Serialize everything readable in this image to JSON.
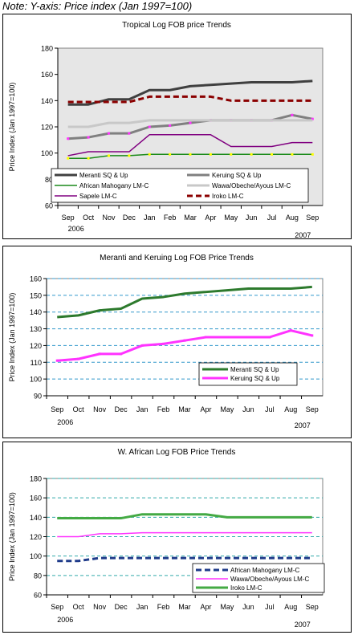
{
  "note": "Note: Y-axis: Price index (Jan 1997=100)",
  "chart_data": [
    {
      "type": "line",
      "title": "Tropical Log FOB price Trends",
      "ylabel": "Price Index (Jan 1997=100)",
      "xlabel": "",
      "categories": [
        "Sep",
        "Oct",
        "Nov",
        "Dec",
        "Jan",
        "Feb",
        "Mar",
        "Apr",
        "May",
        "Jun",
        "Jul",
        "Aug",
        "Sep"
      ],
      "year_labels": [
        "2006",
        "2007"
      ],
      "ylim": [
        60,
        180
      ],
      "yticks": [
        60,
        80,
        100,
        120,
        140,
        160,
        180
      ],
      "grid": false,
      "legend_position": "bottom",
      "series": [
        {
          "name": "Meranti SQ & Up",
          "color": "#404040",
          "style": "solid-thick",
          "values": [
            137,
            137,
            141,
            141,
            148,
            148,
            151,
            152,
            153,
            154,
            154,
            154,
            155
          ]
        },
        {
          "name": "Keruing SQ & Up",
          "color": "#808080",
          "style": "solid-thick-markers",
          "values": [
            111,
            112,
            115,
            115,
            120,
            121,
            123,
            125,
            125,
            125,
            125,
            129,
            126
          ]
        },
        {
          "name": "African Mahogany LM-C",
          "color": "#1a8a1a",
          "style": "solid-markers",
          "values": [
            96,
            96,
            98,
            98,
            99,
            99,
            99,
            99,
            99,
            99,
            99,
            99,
            99
          ]
        },
        {
          "name": "Wawa/Obeche/Ayous LM-C",
          "color": "#c8c8c8",
          "style": "solid-thick",
          "values": [
            120,
            120,
            123,
            123,
            125,
            125,
            125,
            125,
            125,
            125,
            125,
            125,
            125
          ]
        },
        {
          "name": "Sapele LM-C",
          "color": "#800080",
          "style": "solid",
          "values": [
            98,
            101,
            101,
            101,
            114,
            114,
            114,
            114,
            105,
            105,
            105,
            108,
            108
          ]
        },
        {
          "name": "Iroko LM-C",
          "color": "#8b0000",
          "style": "dashed-thick",
          "values": [
            139,
            139,
            139,
            139,
            143,
            143,
            143,
            143,
            140,
            140,
            140,
            140,
            140
          ]
        }
      ]
    },
    {
      "type": "line",
      "title": "Meranti and Keruing Log FOB Price Trends",
      "ylabel": "Price Index (Jan 1997=100)",
      "xlabel": "",
      "categories": [
        "Sep",
        "Oct",
        "Nov",
        "Dec",
        "Jan",
        "Feb",
        "Mar",
        "Apr",
        "May",
        "Jun",
        "Jul",
        "Aug",
        "Sep"
      ],
      "year_labels": [
        "2006",
        "2007"
      ],
      "ylim": [
        90,
        160
      ],
      "yticks": [
        90,
        100,
        110,
        120,
        130,
        140,
        150,
        160
      ],
      "grid": true,
      "legend_position": "bottom-right",
      "series": [
        {
          "name": "Meranti SQ & Up",
          "color": "#2d7a2d",
          "style": "solid-thick",
          "values": [
            137,
            138,
            141,
            142,
            148,
            149,
            151,
            152,
            153,
            154,
            154,
            154,
            155
          ]
        },
        {
          "name": "Keruing SQ & Up",
          "color": "#ff33ff",
          "style": "solid-thick-markers",
          "values": [
            111,
            112,
            115,
            115,
            120,
            121,
            123,
            125,
            125,
            125,
            125,
            129,
            126
          ]
        }
      ]
    },
    {
      "type": "line",
      "title": "W. African Log FOB Price Trends",
      "ylabel": "Price Index (Jan 1997=100)",
      "xlabel": "",
      "categories": [
        "Sep",
        "Oct",
        "Nov",
        "Dec",
        "Jan",
        "Feb",
        "Mar",
        "Apr",
        "May",
        "Jun",
        "Jul",
        "Aug",
        "Sep"
      ],
      "year_labels": [
        "2006",
        "2007"
      ],
      "ylim": [
        60,
        180
      ],
      "yticks": [
        60,
        80,
        100,
        120,
        140,
        160,
        180
      ],
      "grid": true,
      "legend_position": "bottom-right",
      "series": [
        {
          "name": "African Mahogany LM-C",
          "color": "#1f3b8a",
          "style": "dashed-thick",
          "values": [
            95,
            95,
            98,
            98,
            98,
            98,
            98,
            98,
            98,
            98,
            98,
            98,
            98
          ]
        },
        {
          "name": "Wawa/Obeche/Ayous LM-C",
          "color": "#ff33ff",
          "style": "solid",
          "values": [
            120,
            120,
            123,
            123,
            124,
            124,
            124,
            124,
            124,
            124,
            124,
            124,
            124
          ]
        },
        {
          "name": "Iroko LM-C",
          "color": "#44aa44",
          "style": "solid-thick",
          "values": [
            139,
            139,
            139,
            139,
            143,
            143,
            143,
            143,
            140,
            140,
            140,
            140,
            140
          ]
        }
      ]
    }
  ]
}
